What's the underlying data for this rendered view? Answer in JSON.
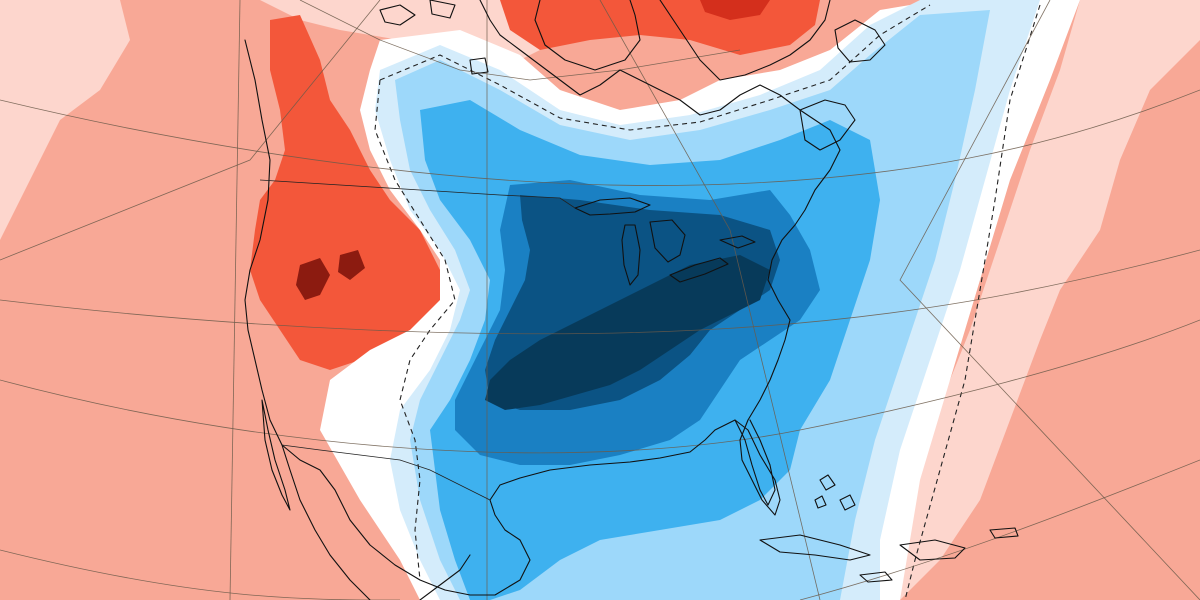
{
  "map": {
    "type": "temperature-anomaly",
    "region": "north-america",
    "colors": {
      "warm_1": "#fdd6cd",
      "warm_2": "#f8a896",
      "warm_3": "#f3573a",
      "warm_4": "#d42f1c",
      "warm_5": "#8c1b10",
      "neutral": "#ffffff",
      "cold_1": "#d4ecfb",
      "cold_2": "#9dd8fa",
      "cold_3": "#3eb1ef",
      "cold_4": "#1a80c3",
      "cold_5": "#0b5384",
      "cold_6": "#073a5a",
      "coastline": "#111111",
      "graticule": "#6b5a4a"
    },
    "features": [
      "coastlines",
      "national-borders",
      "lakes",
      "graticule",
      "zero-anomaly-contour-dashed"
    ]
  }
}
